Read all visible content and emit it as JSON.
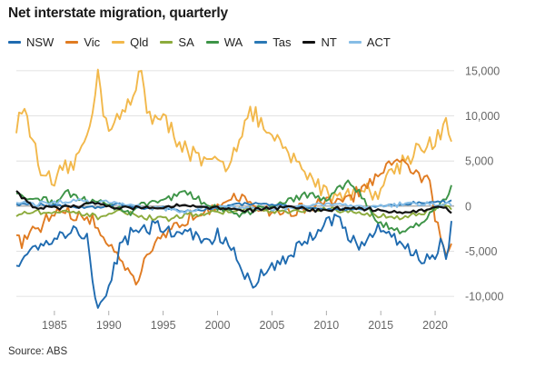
{
  "chart_data": {
    "type": "line",
    "title": "Net interstate migration, quarterly",
    "xlabel": "",
    "ylabel": "",
    "x_ticks": [
      1985,
      1990,
      1995,
      2000,
      2005,
      2010,
      2015,
      2020
    ],
    "y_ticks": [
      -10000,
      -5000,
      0,
      5000,
      10000,
      15000
    ],
    "y_tick_labels": [
      "-10,000",
      "-5,000",
      "0",
      "5,000",
      "10,000",
      "15,000"
    ],
    "xlim": [
      1981.5,
      2021.75
    ],
    "ylim": [
      -11600,
      16600
    ],
    "grid": "horizontal",
    "legend_position": "top",
    "source": "Source: ABS",
    "series": [
      {
        "name": "NSW",
        "color": "#1f6bb0",
        "anchors": [
          [
            1981.5,
            -6500
          ],
          [
            1982,
            -5800
          ],
          [
            1983,
            -4200
          ],
          [
            1984,
            -4000
          ],
          [
            1985,
            -3500
          ],
          [
            1986,
            -3000
          ],
          [
            1987,
            -2600
          ],
          [
            1988,
            -3500
          ],
          [
            1988.5,
            -8000
          ],
          [
            1989,
            -11400
          ],
          [
            1989.5,
            -10800
          ],
          [
            1990,
            -8800
          ],
          [
            1990.5,
            -6500
          ],
          [
            1991,
            -4500
          ],
          [
            1992,
            -3000
          ],
          [
            1993,
            -2500
          ],
          [
            1994,
            -2300
          ],
          [
            1995,
            -2500
          ],
          [
            1996,
            -3000
          ],
          [
            1997,
            -3000
          ],
          [
            1998,
            -3200
          ],
          [
            1999,
            -4000
          ],
          [
            2000,
            -3200
          ],
          [
            2001,
            -4300
          ],
          [
            2002,
            -6500
          ],
          [
            2003,
            -8500
          ],
          [
            2003.5,
            -9000
          ],
          [
            2004,
            -7500
          ],
          [
            2005,
            -6500
          ],
          [
            2006,
            -6000
          ],
          [
            2007,
            -5000
          ],
          [
            2008,
            -4000
          ],
          [
            2009,
            -3000
          ],
          [
            2010,
            -1200
          ],
          [
            2011,
            -1500
          ],
          [
            2012,
            -3200
          ],
          [
            2013,
            -4200
          ],
          [
            2014,
            -3500
          ],
          [
            2015,
            -2500
          ],
          [
            2016,
            -3000
          ],
          [
            2017,
            -4200
          ],
          [
            2018,
            -5200
          ],
          [
            2019,
            -6000
          ],
          [
            2020,
            -5800
          ],
          [
            2020.5,
            -4000
          ],
          [
            2021,
            -5500
          ],
          [
            2021.5,
            -2200
          ]
        ],
        "vol": 900
      },
      {
        "name": "Vic",
        "color": "#e07b22",
        "anchors": [
          [
            1981.5,
            -3500
          ],
          [
            1982,
            -4000
          ],
          [
            1983,
            -3000
          ],
          [
            1984,
            -2000
          ],
          [
            1985,
            -600
          ],
          [
            1986,
            -400
          ],
          [
            1987,
            -1500
          ],
          [
            1988,
            -1000
          ],
          [
            1989,
            -2500
          ],
          [
            1990,
            -4000
          ],
          [
            1991,
            -5500
          ],
          [
            1992,
            -7500
          ],
          [
            1992.5,
            -8500
          ],
          [
            1993,
            -7000
          ],
          [
            1994,
            -5000
          ],
          [
            1995,
            -3500
          ],
          [
            1996,
            -2500
          ],
          [
            1997,
            -1500
          ],
          [
            1998,
            -800
          ],
          [
            1999,
            -200
          ],
          [
            2000,
            500
          ],
          [
            2001,
            700
          ],
          [
            2002,
            600
          ],
          [
            2003,
            400
          ],
          [
            2004,
            -300
          ],
          [
            2005,
            -500
          ],
          [
            2006,
            -800
          ],
          [
            2007,
            -600
          ],
          [
            2008,
            -200
          ],
          [
            2009,
            100
          ],
          [
            2010,
            300
          ],
          [
            2011,
            500
          ],
          [
            2012,
            800
          ],
          [
            2013,
            1500
          ],
          [
            2014,
            2500
          ],
          [
            2015,
            3200
          ],
          [
            2016,
            4500
          ],
          [
            2017,
            5500
          ],
          [
            2018,
            3500
          ],
          [
            2019,
            3000
          ],
          [
            2019.5,
            2500
          ],
          [
            2020,
            -1000
          ],
          [
            2020.5,
            -3500
          ],
          [
            2021,
            -6000
          ],
          [
            2021.5,
            -4000
          ]
        ],
        "vol": 800
      },
      {
        "name": "Qld",
        "color": "#f2b84b",
        "anchors": [
          [
            1981.5,
            8500
          ],
          [
            1982,
            11500
          ],
          [
            1982.5,
            9000
          ],
          [
            1983,
            7500
          ],
          [
            1984,
            3000
          ],
          [
            1985,
            2500
          ],
          [
            1986,
            4000
          ],
          [
            1987,
            5000
          ],
          [
            1988,
            8000
          ],
          [
            1988.5,
            11000
          ],
          [
            1989,
            14500
          ],
          [
            1989.5,
            11000
          ],
          [
            1990,
            9000
          ],
          [
            1991,
            10000
          ],
          [
            1992,
            11000
          ],
          [
            1993,
            15500
          ],
          [
            1993.5,
            11000
          ],
          [
            1994,
            10000
          ],
          [
            1995,
            9500
          ],
          [
            1996,
            8000
          ],
          [
            1997,
            6500
          ],
          [
            1998,
            5500
          ],
          [
            1999,
            4500
          ],
          [
            2000,
            5000
          ],
          [
            2001,
            4500
          ],
          [
            2002,
            8000
          ],
          [
            2003,
            10500
          ],
          [
            2004,
            9000
          ],
          [
            2005,
            7500
          ],
          [
            2006,
            6500
          ],
          [
            2007,
            5000
          ],
          [
            2008,
            4000
          ],
          [
            2009,
            2500
          ],
          [
            2010,
            1800
          ],
          [
            2011,
            1000
          ],
          [
            2012,
            1500
          ],
          [
            2013,
            2000
          ],
          [
            2014,
            1500
          ],
          [
            2015,
            2000
          ],
          [
            2016,
            4000
          ],
          [
            2017,
            5000
          ],
          [
            2018,
            6000
          ],
          [
            2019,
            7000
          ],
          [
            2020,
            6500
          ],
          [
            2021,
            9500
          ],
          [
            2021.5,
            7000
          ]
        ],
        "vol": 1100
      },
      {
        "name": "SA",
        "color": "#8cab3c",
        "anchors": [
          [
            1981.5,
            -1000
          ],
          [
            1983,
            -600
          ],
          [
            1985,
            -700
          ],
          [
            1987,
            -800
          ],
          [
            1989,
            -1200
          ],
          [
            1991,
            -600
          ],
          [
            1993,
            -1200
          ],
          [
            1995,
            -1500
          ],
          [
            1997,
            -1000
          ],
          [
            1999,
            -800
          ],
          [
            2001,
            -600
          ],
          [
            2003,
            -300
          ],
          [
            2005,
            -600
          ],
          [
            2007,
            -700
          ],
          [
            2009,
            -300
          ],
          [
            2011,
            -500
          ],
          [
            2013,
            -800
          ],
          [
            2015,
            -1100
          ],
          [
            2017,
            -1200
          ],
          [
            2019,
            -800
          ],
          [
            2020,
            -300
          ],
          [
            2021,
            300
          ],
          [
            2021.5,
            -500
          ]
        ],
        "vol": 280
      },
      {
        "name": "WA",
        "color": "#3d9447",
        "anchors": [
          [
            1981.5,
            1200
          ],
          [
            1983,
            1000
          ],
          [
            1985,
            300
          ],
          [
            1986,
            1800
          ],
          [
            1987,
            1000
          ],
          [
            1988,
            600
          ],
          [
            1989,
            700
          ],
          [
            1990,
            200
          ],
          [
            1991,
            -300
          ],
          [
            1992,
            -800
          ],
          [
            1993,
            200
          ],
          [
            1995,
            800
          ],
          [
            1997,
            1500
          ],
          [
            1999,
            200
          ],
          [
            2001,
            -500
          ],
          [
            2002,
            -1200
          ],
          [
            2004,
            -200
          ],
          [
            2006,
            300
          ],
          [
            2008,
            1400
          ],
          [
            2010,
            600
          ],
          [
            2011,
            1800
          ],
          [
            2012,
            2800
          ],
          [
            2013,
            1500
          ],
          [
            2014,
            -500
          ],
          [
            2015,
            -2000
          ],
          [
            2016,
            -2500
          ],
          [
            2017,
            -2800
          ],
          [
            2018,
            -2200
          ],
          [
            2019,
            -1500
          ],
          [
            2020,
            -400
          ],
          [
            2021,
            900
          ],
          [
            2021.5,
            2000
          ]
        ],
        "vol": 400
      },
      {
        "name": "Tas",
        "color": "#2a78b5",
        "anchors": [
          [
            1981.5,
            200
          ],
          [
            1985,
            100
          ],
          [
            1989,
            -200
          ],
          [
            1991,
            300
          ],
          [
            1993,
            -300
          ],
          [
            1995,
            -200
          ],
          [
            1997,
            -600
          ],
          [
            1999,
            -400
          ],
          [
            2001,
            100
          ],
          [
            2003,
            300
          ],
          [
            2005,
            100
          ],
          [
            2007,
            -100
          ],
          [
            2009,
            -200
          ],
          [
            2011,
            -400
          ],
          [
            2013,
            -300
          ],
          [
            2015,
            0
          ],
          [
            2017,
            200
          ],
          [
            2019,
            400
          ],
          [
            2021,
            500
          ],
          [
            2021.5,
            600
          ]
        ],
        "vol": 170
      },
      {
        "name": "NT",
        "color": "#111111",
        "anchors": [
          [
            1981.5,
            1700
          ],
          [
            1982,
            1000
          ],
          [
            1983,
            -100
          ],
          [
            1985,
            -200
          ],
          [
            1987,
            0
          ],
          [
            1989,
            300
          ],
          [
            1991,
            -200
          ],
          [
            1993,
            -100
          ],
          [
            1995,
            -200
          ],
          [
            1997,
            100
          ],
          [
            1999,
            -100
          ],
          [
            2001,
            -300
          ],
          [
            2003,
            -500
          ],
          [
            2005,
            -200
          ],
          [
            2007,
            -100
          ],
          [
            2009,
            -500
          ],
          [
            2011,
            -300
          ],
          [
            2013,
            -200
          ],
          [
            2015,
            -500
          ],
          [
            2017,
            -700
          ],
          [
            2019,
            -500
          ],
          [
            2020,
            -100
          ],
          [
            2021,
            -300
          ],
          [
            2021.5,
            -900
          ]
        ],
        "vol": 220
      },
      {
        "name": "ACT",
        "color": "#86bde6",
        "anchors": [
          [
            1981.5,
            500
          ],
          [
            1983,
            200
          ],
          [
            1985,
            400
          ],
          [
            1987,
            600
          ],
          [
            1989,
            500
          ],
          [
            1991,
            300
          ],
          [
            1993,
            0
          ],
          [
            1995,
            -200
          ],
          [
            1997,
            -600
          ],
          [
            1999,
            -200
          ],
          [
            2001,
            0
          ],
          [
            2003,
            -200
          ],
          [
            2005,
            -300
          ],
          [
            2007,
            -100
          ],
          [
            2009,
            100
          ],
          [
            2011,
            200
          ],
          [
            2013,
            -100
          ],
          [
            2015,
            0
          ],
          [
            2017,
            200
          ],
          [
            2019,
            300
          ],
          [
            2021,
            200
          ],
          [
            2021.5,
            300
          ]
        ],
        "vol": 260
      }
    ]
  }
}
